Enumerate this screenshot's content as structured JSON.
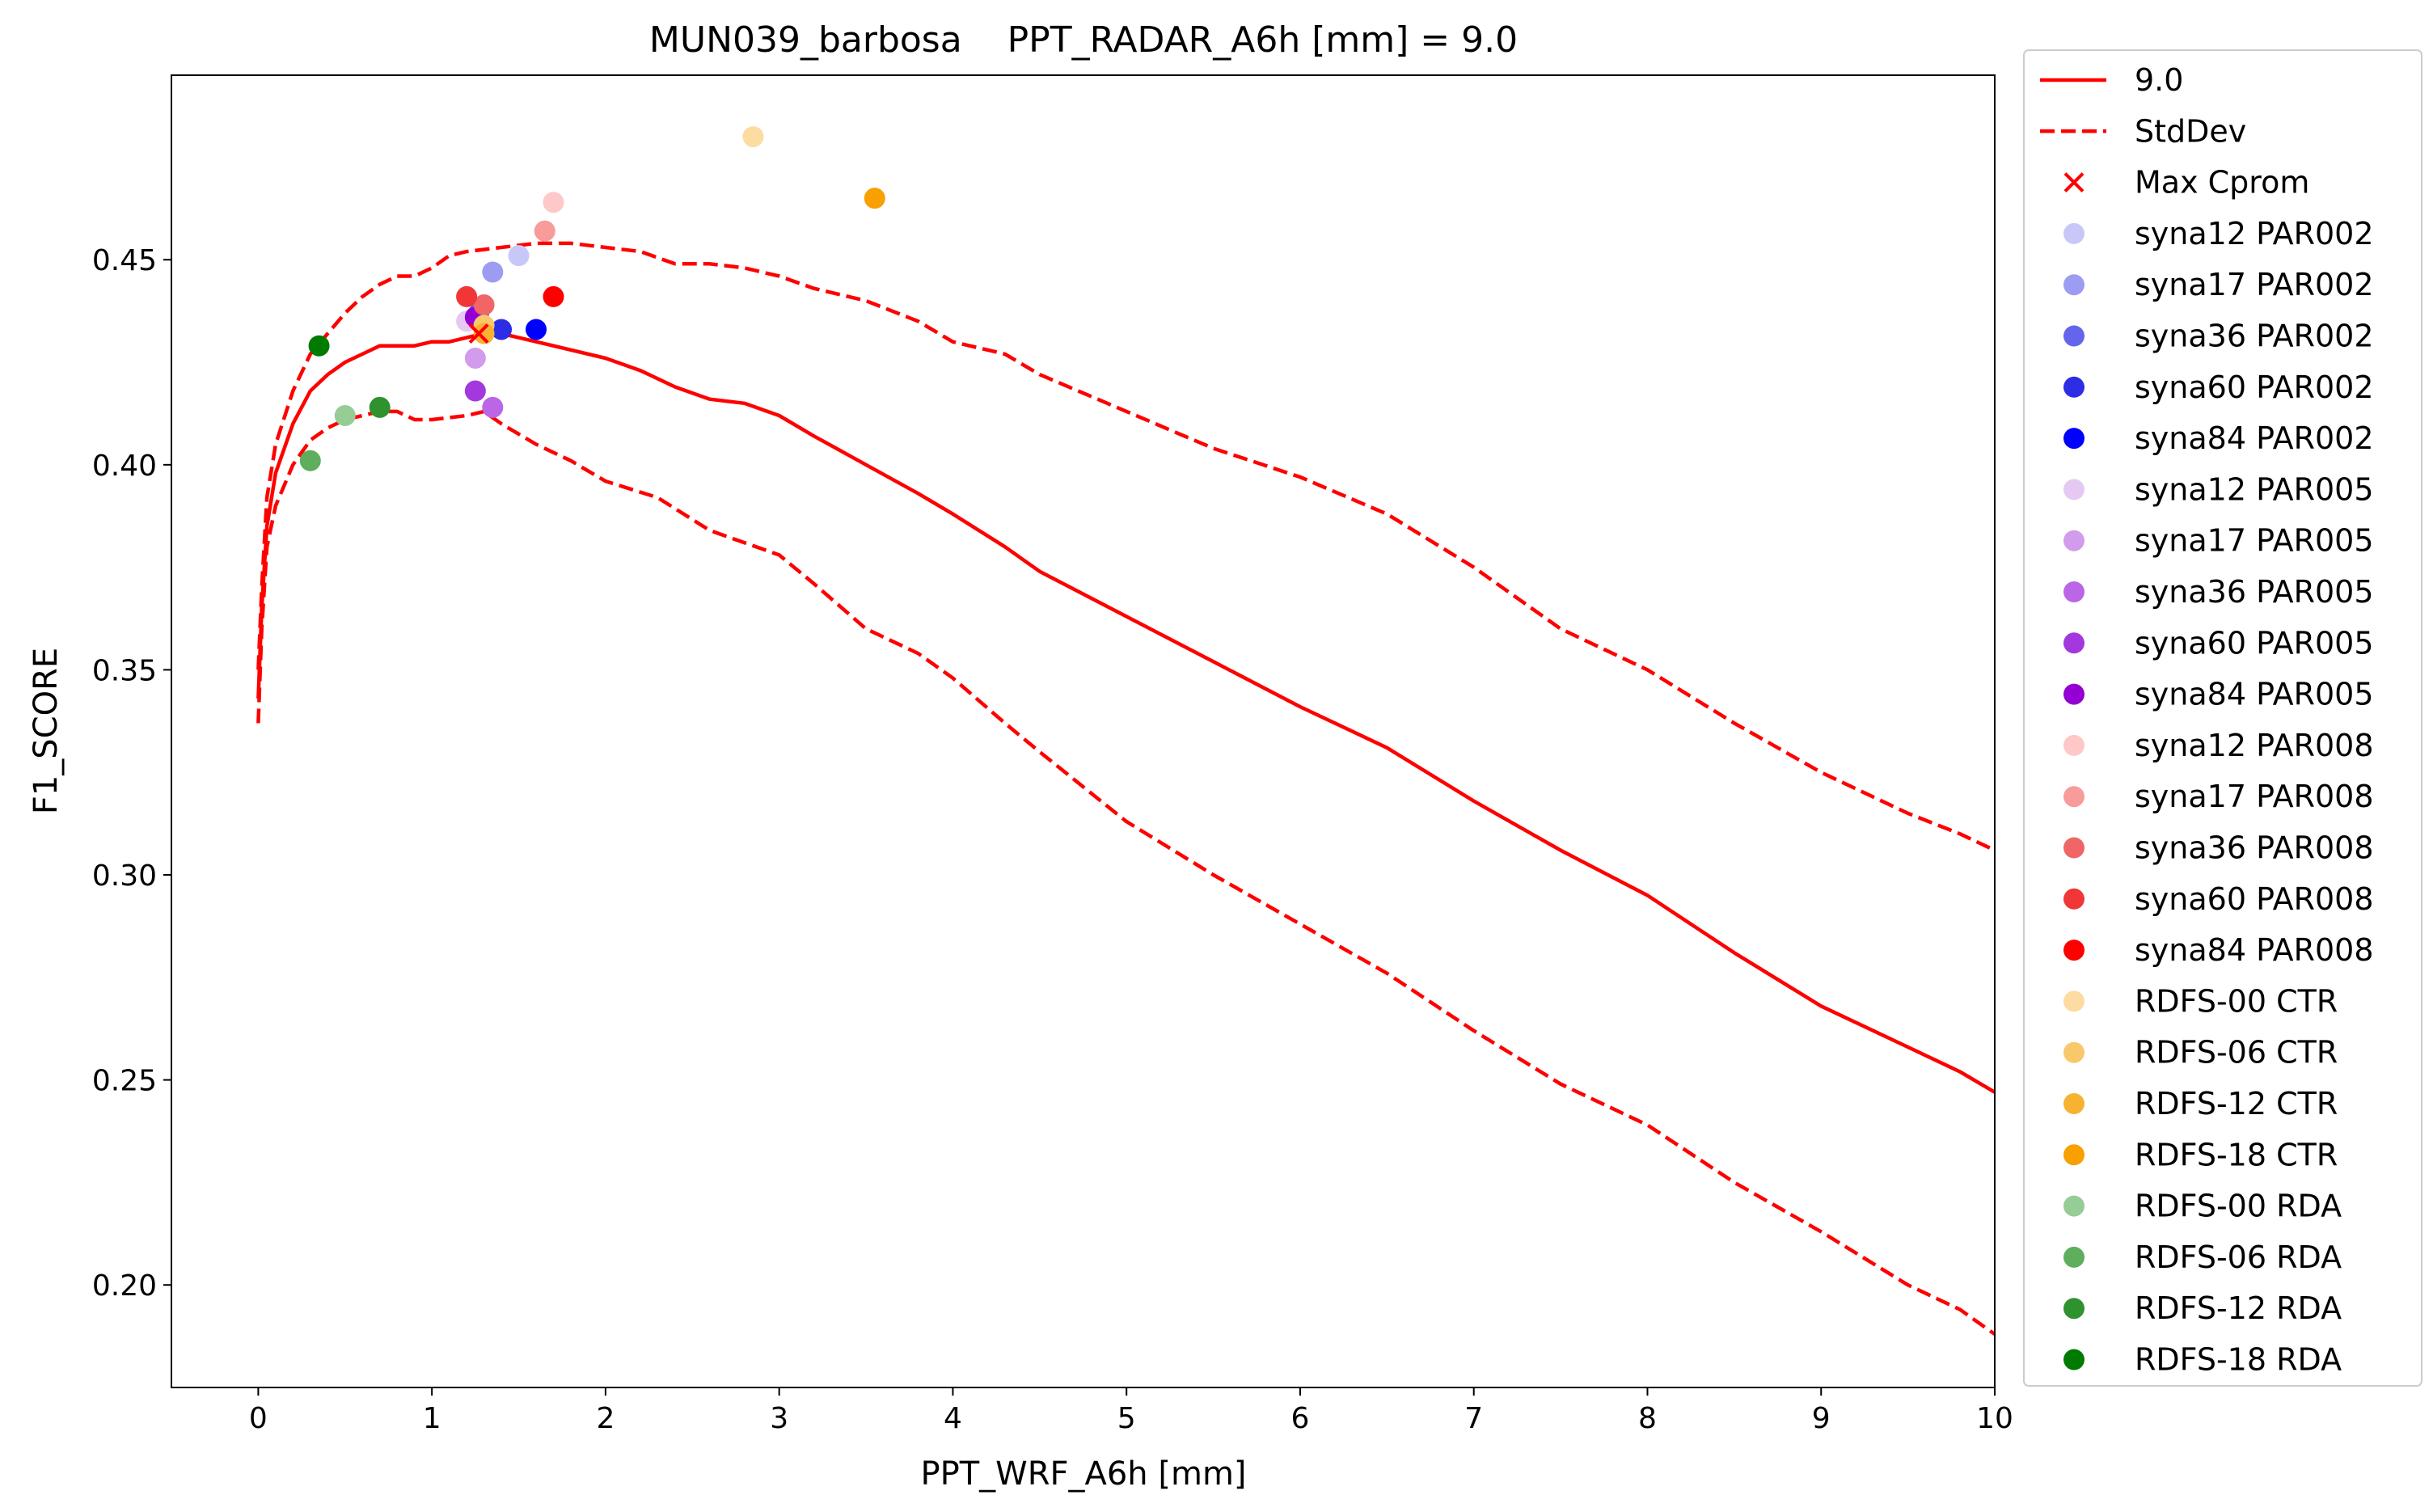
{
  "chart_data": {
    "type": "line",
    "title": "MUN039_barbosa    PPT_RADAR_A6h [mm] = 9.0",
    "xlabel": "PPT_WRF_A6h [mm]",
    "ylabel": "F1_SCORE",
    "xlim": [
      -0.5,
      10
    ],
    "ylim": [
      0.175,
      0.495
    ],
    "xticks": [
      0,
      1,
      2,
      3,
      4,
      5,
      6,
      7,
      8,
      9,
      10
    ],
    "yticks": [
      0.2,
      0.25,
      0.3,
      0.35,
      0.4,
      0.45
    ],
    "xtick_labels": [
      "0",
      "1",
      "2",
      "3",
      "4",
      "5",
      "6",
      "7",
      "8",
      "9",
      "10"
    ],
    "ytick_labels": [
      "0.20",
      "0.25",
      "0.30",
      "0.35",
      "0.40",
      "0.45"
    ],
    "grid": false,
    "legend_position": "outside-right",
    "lines": [
      {
        "name": "9.0",
        "style": "solid",
        "color": "#ff0000",
        "points": [
          [
            0,
            0.343
          ],
          [
            0.02,
            0.365
          ],
          [
            0.05,
            0.385
          ],
          [
            0.1,
            0.398
          ],
          [
            0.2,
            0.41
          ],
          [
            0.3,
            0.418
          ],
          [
            0.4,
            0.422
          ],
          [
            0.5,
            0.425
          ],
          [
            0.6,
            0.427
          ],
          [
            0.7,
            0.429
          ],
          [
            0.8,
            0.429
          ],
          [
            0.9,
            0.429
          ],
          [
            1.0,
            0.43
          ],
          [
            1.1,
            0.43
          ],
          [
            1.2,
            0.431
          ],
          [
            1.3,
            0.432
          ],
          [
            1.4,
            0.432
          ],
          [
            1.5,
            0.431
          ],
          [
            1.7,
            0.429
          ],
          [
            1.8,
            0.428
          ],
          [
            2.0,
            0.426
          ],
          [
            2.2,
            0.423
          ],
          [
            2.4,
            0.419
          ],
          [
            2.6,
            0.416
          ],
          [
            2.8,
            0.415
          ],
          [
            3.0,
            0.412
          ],
          [
            3.2,
            0.407
          ],
          [
            3.5,
            0.4
          ],
          [
            3.8,
            0.393
          ],
          [
            4.0,
            0.388
          ],
          [
            4.3,
            0.38
          ],
          [
            4.5,
            0.374
          ],
          [
            5.0,
            0.363
          ],
          [
            5.5,
            0.352
          ],
          [
            6.0,
            0.341
          ],
          [
            6.5,
            0.331
          ],
          [
            7.0,
            0.318
          ],
          [
            7.5,
            0.306
          ],
          [
            8.0,
            0.295
          ],
          [
            8.5,
            0.281
          ],
          [
            9.0,
            0.268
          ],
          [
            9.5,
            0.258
          ],
          [
            9.8,
            0.252
          ],
          [
            10.0,
            0.247
          ]
        ]
      },
      {
        "name": "StdDev",
        "style": "dashed",
        "color": "#ff0000",
        "points": [
          [
            0,
            0.337
          ],
          [
            0.02,
            0.36
          ],
          [
            0.05,
            0.38
          ],
          [
            0.1,
            0.39
          ],
          [
            0.2,
            0.4
          ],
          [
            0.3,
            0.406
          ],
          [
            0.4,
            0.409
          ],
          [
            0.5,
            0.411
          ],
          [
            0.6,
            0.412
          ],
          [
            0.7,
            0.413
          ],
          [
            0.8,
            0.413
          ],
          [
            0.9,
            0.411
          ],
          [
            1.0,
            0.411
          ],
          [
            1.2,
            0.412
          ],
          [
            1.3,
            0.413
          ],
          [
            1.4,
            0.41
          ],
          [
            1.6,
            0.405
          ],
          [
            1.8,
            0.401
          ],
          [
            2.0,
            0.396
          ],
          [
            2.3,
            0.392
          ],
          [
            2.6,
            0.384
          ],
          [
            3.0,
            0.378
          ],
          [
            3.2,
            0.371
          ],
          [
            3.5,
            0.36
          ],
          [
            3.8,
            0.354
          ],
          [
            4.0,
            0.348
          ],
          [
            4.3,
            0.337
          ],
          [
            4.5,
            0.33
          ],
          [
            5.0,
            0.313
          ],
          [
            5.5,
            0.3
          ],
          [
            6.0,
            0.288
          ],
          [
            6.5,
            0.276
          ],
          [
            7.0,
            0.262
          ],
          [
            7.5,
            0.249
          ],
          [
            8.0,
            0.239
          ],
          [
            8.5,
            0.225
          ],
          [
            9.0,
            0.213
          ],
          [
            9.5,
            0.2
          ],
          [
            9.8,
            0.194
          ],
          [
            10.0,
            0.188
          ]
        ]
      },
      {
        "name": "StdDev (upper)",
        "style": "dashed",
        "color": "#ff0000",
        "points": [
          [
            0,
            0.35
          ],
          [
            0.02,
            0.37
          ],
          [
            0.05,
            0.392
          ],
          [
            0.1,
            0.405
          ],
          [
            0.2,
            0.418
          ],
          [
            0.3,
            0.427
          ],
          [
            0.4,
            0.432
          ],
          [
            0.5,
            0.437
          ],
          [
            0.6,
            0.441
          ],
          [
            0.7,
            0.444
          ],
          [
            0.8,
            0.446
          ],
          [
            0.9,
            0.446
          ],
          [
            1.0,
            0.448
          ],
          [
            1.1,
            0.451
          ],
          [
            1.2,
            0.452
          ],
          [
            1.4,
            0.453
          ],
          [
            1.6,
            0.454
          ],
          [
            1.8,
            0.454
          ],
          [
            2.0,
            0.453
          ],
          [
            2.2,
            0.452
          ],
          [
            2.4,
            0.449
          ],
          [
            2.6,
            0.449
          ],
          [
            2.8,
            0.448
          ],
          [
            3.0,
            0.446
          ],
          [
            3.2,
            0.443
          ],
          [
            3.5,
            0.44
          ],
          [
            3.8,
            0.435
          ],
          [
            4.0,
            0.43
          ],
          [
            4.3,
            0.427
          ],
          [
            4.5,
            0.422
          ],
          [
            5.0,
            0.413
          ],
          [
            5.5,
            0.404
          ],
          [
            6.0,
            0.397
          ],
          [
            6.5,
            0.388
          ],
          [
            7.0,
            0.375
          ],
          [
            7.5,
            0.36
          ],
          [
            8.0,
            0.35
          ],
          [
            8.5,
            0.337
          ],
          [
            9.0,
            0.325
          ],
          [
            9.5,
            0.315
          ],
          [
            9.8,
            0.31
          ],
          [
            10.0,
            0.306
          ]
        ]
      }
    ],
    "max_marker": {
      "name": "Max Cprom",
      "color": "#ff0000",
      "x": 1.27,
      "y": 0.432
    },
    "series": [
      {
        "name": "syna12 PAR002",
        "color": "#c8c8f8",
        "x": 1.5,
        "y": 0.451
      },
      {
        "name": "syna17 PAR002",
        "color": "#9c9cf3",
        "x": 1.35,
        "y": 0.447
      },
      {
        "name": "syna36 PAR002",
        "color": "#6464ec",
        "x": 1.27,
        "y": 0.437
      },
      {
        "name": "syna60 PAR002",
        "color": "#2d2de6",
        "x": 1.4,
        "y": 0.433
      },
      {
        "name": "syna84 PAR002",
        "color": "#0000ff",
        "x": 1.6,
        "y": 0.433
      },
      {
        "name": "syna12 PAR005",
        "color": "#e6c9f3",
        "x": 1.2,
        "y": 0.435
      },
      {
        "name": "syna17 PAR005",
        "color": "#d29bec",
        "x": 1.25,
        "y": 0.426
      },
      {
        "name": "syna36 PAR005",
        "color": "#bb66e6",
        "x": 1.35,
        "y": 0.414
      },
      {
        "name": "syna60 PAR005",
        "color": "#a338de",
        "x": 1.25,
        "y": 0.418
      },
      {
        "name": "syna84 PAR005",
        "color": "#9400d3",
        "x": 1.25,
        "y": 0.436
      },
      {
        "name": "syna12 PAR008",
        "color": "#ffc8c8",
        "x": 1.7,
        "y": 0.464
      },
      {
        "name": "syna17 PAR008",
        "color": "#f79b9b",
        "x": 1.65,
        "y": 0.457
      },
      {
        "name": "syna36 PAR008",
        "color": "#f06666",
        "x": 1.3,
        "y": 0.439
      },
      {
        "name": "syna60 PAR008",
        "color": "#f03636",
        "x": 1.2,
        "y": 0.441
      },
      {
        "name": "syna84 PAR008",
        "color": "#ff0000",
        "x": 1.7,
        "y": 0.441
      },
      {
        "name": "RDFS-00 CTR",
        "color": "#fcdca0",
        "x": 2.85,
        "y": 0.48
      },
      {
        "name": "RDFS-06 CTR",
        "color": "#f9c86a",
        "x": 1.3,
        "y": 0.434
      },
      {
        "name": "RDFS-12 CTR",
        "color": "#f7b232",
        "x": 1.3,
        "y": 0.432
      },
      {
        "name": "RDFS-18 CTR",
        "color": "#f7a000",
        "x": 3.55,
        "y": 0.465
      },
      {
        "name": "RDFS-00 RDA",
        "color": "#96cc96",
        "x": 0.5,
        "y": 0.412
      },
      {
        "name": "RDFS-06 RDA",
        "color": "#5eae5e",
        "x": 0.3,
        "y": 0.401
      },
      {
        "name": "RDFS-12 RDA",
        "color": "#2e922e",
        "x": 0.7,
        "y": 0.414
      },
      {
        "name": "RDFS-18 RDA",
        "color": "#007a00",
        "x": 0.35,
        "y": 0.429
      }
    ]
  }
}
